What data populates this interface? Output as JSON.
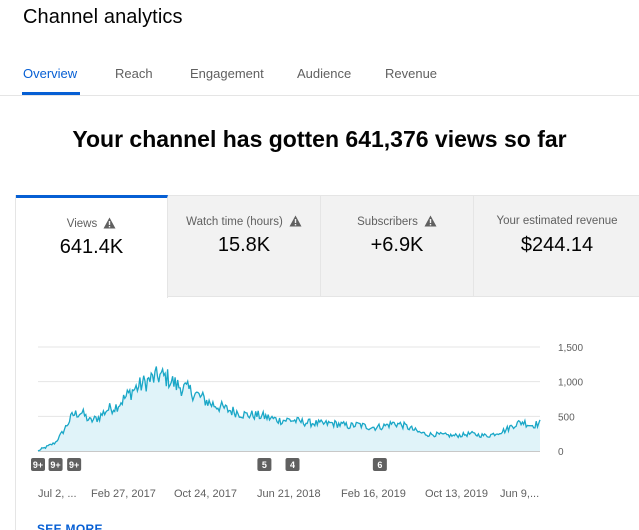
{
  "page": {
    "title": "Channel analytics"
  },
  "tabs": [
    {
      "label": "Overview",
      "active": true
    },
    {
      "label": "Reach",
      "active": false
    },
    {
      "label": "Engagement",
      "active": false
    },
    {
      "label": "Audience",
      "active": false
    },
    {
      "label": "Revenue",
      "active": false
    }
  ],
  "headline": "Your channel has gotten 641,376 views so far",
  "metrics": [
    {
      "label": "Views",
      "value": "641.4K",
      "icon": "warning-icon",
      "active": true
    },
    {
      "label": "Watch time (hours)",
      "value": "15.8K",
      "icon": "warning-icon",
      "active": false
    },
    {
      "label": "Subscribers",
      "value": "+6.9K",
      "icon": "warning-icon",
      "active": false
    },
    {
      "label": "Your estimated revenue",
      "value": "$244.14",
      "active": false
    }
  ],
  "colors": {
    "accent": "#065fd4",
    "line": "#1aa7c7",
    "fill": "#e0f3f9"
  },
  "chart_data": {
    "type": "area",
    "y_ticks": [
      "1,500",
      "1,000",
      "500",
      "0"
    ],
    "ylim": [
      0,
      1500
    ],
    "x_ticks": [
      "Jul 2, ...",
      "Feb 27, 2017",
      "Oct 24, 2017",
      "Jun 21, 2018",
      "Feb 16, 2019",
      "Oct 13, 2019",
      "Jun 9,..."
    ],
    "markers": [
      {
        "label": "9+",
        "x_frac": 0.0
      },
      {
        "label": "9+",
        "x_frac": 0.035
      },
      {
        "label": "9+",
        "x_frac": 0.072
      },
      {
        "label": "5",
        "x_frac": 0.451
      },
      {
        "label": "4",
        "x_frac": 0.507
      },
      {
        "label": "6",
        "x_frac": 0.681
      }
    ],
    "series": [
      {
        "values": [
          0,
          60,
          120,
          300,
          520,
          560,
          430,
          480,
          600,
          640,
          760,
          880,
          960,
          1030,
          1090,
          1050,
          950,
          900,
          840,
          760,
          680,
          640,
          590,
          560,
          520,
          520,
          500,
          470,
          440,
          450,
          430,
          410,
          400,
          390,
          400,
          380,
          360,
          380,
          350,
          340,
          360,
          400,
          380,
          330,
          270,
          240,
          240,
          230,
          220,
          230,
          250,
          230,
          220,
          260,
          300,
          380,
          420,
          370,
          400
        ]
      }
    ]
  },
  "footer": {
    "see_more": "SEE MORE"
  }
}
